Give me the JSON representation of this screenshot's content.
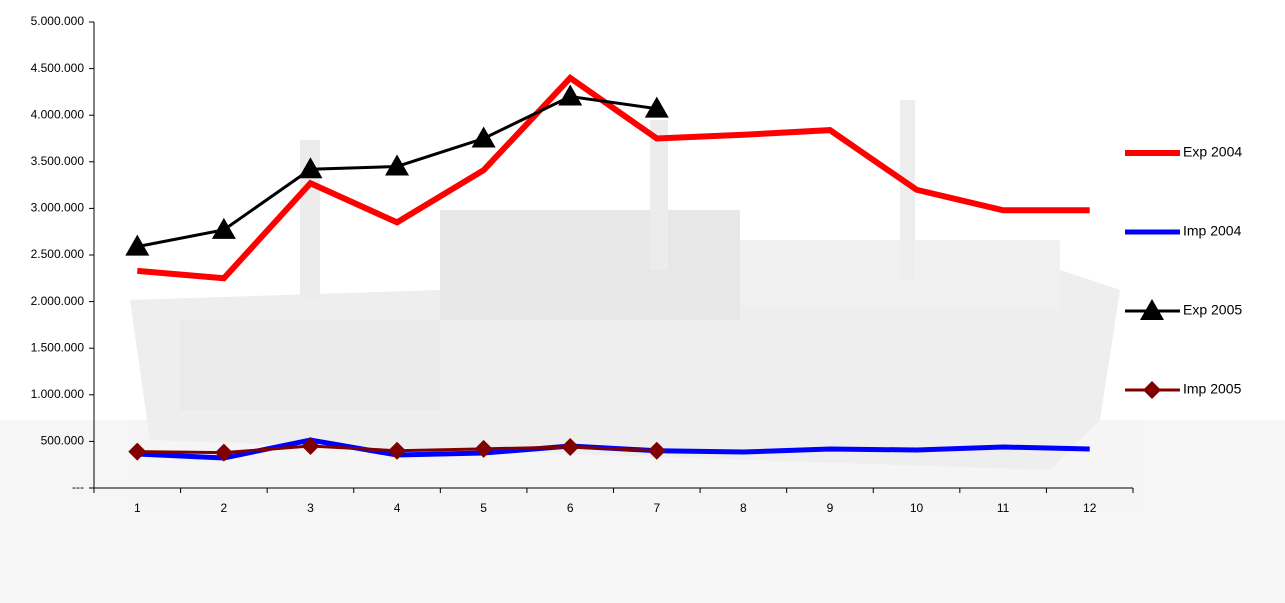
{
  "chart_data": {
    "type": "line",
    "categories": [
      "1",
      "2",
      "3",
      "4",
      "5",
      "6",
      "7",
      "8",
      "9",
      "10",
      "11",
      "12"
    ],
    "series": [
      {
        "name": "Exp 2004",
        "color": "#ff0000",
        "marker": null,
        "values": [
          2330000,
          2250000,
          3270000,
          2850000,
          3410000,
          4400000,
          3750000,
          3790000,
          3840000,
          3200000,
          2980000,
          2980000
        ]
      },
      {
        "name": "Imp 2004",
        "color": "#0000ff",
        "marker": null,
        "values": [
          365000,
          322000,
          515000,
          354000,
          375000,
          450000,
          400000,
          386000,
          418000,
          408000,
          440000,
          418000
        ]
      },
      {
        "name": "Exp 2005",
        "color": "#000000",
        "marker": "triangle",
        "values": [
          2590000,
          2770000,
          3420000,
          3450000,
          3750000,
          4200000,
          4070000,
          null,
          null,
          null,
          null,
          null
        ]
      },
      {
        "name": "Imp 2005",
        "color": "#800000",
        "marker": "diamond",
        "values": [
          390000,
          380000,
          450000,
          400000,
          420000,
          440000,
          400000,
          null,
          null,
          null,
          null,
          null
        ]
      }
    ],
    "ylim": [
      0,
      5000000
    ],
    "yticks": [
      {
        "value": 0,
        "label": "---"
      },
      {
        "value": 500000,
        "label": "500.000"
      },
      {
        "value": 1000000,
        "label": "1.000.000"
      },
      {
        "value": 1500000,
        "label": "1.500.000"
      },
      {
        "value": 2000000,
        "label": "2.000.000"
      },
      {
        "value": 2500000,
        "label": "2.500.000"
      },
      {
        "value": 3000000,
        "label": "3.000.000"
      },
      {
        "value": 3500000,
        "label": "3.500.000"
      },
      {
        "value": 4000000,
        "label": "4.000.000"
      },
      {
        "value": 4500000,
        "label": "4.500.000"
      },
      {
        "value": 5000000,
        "label": "5.000.000"
      }
    ],
    "grid": false,
    "legend": "right"
  }
}
